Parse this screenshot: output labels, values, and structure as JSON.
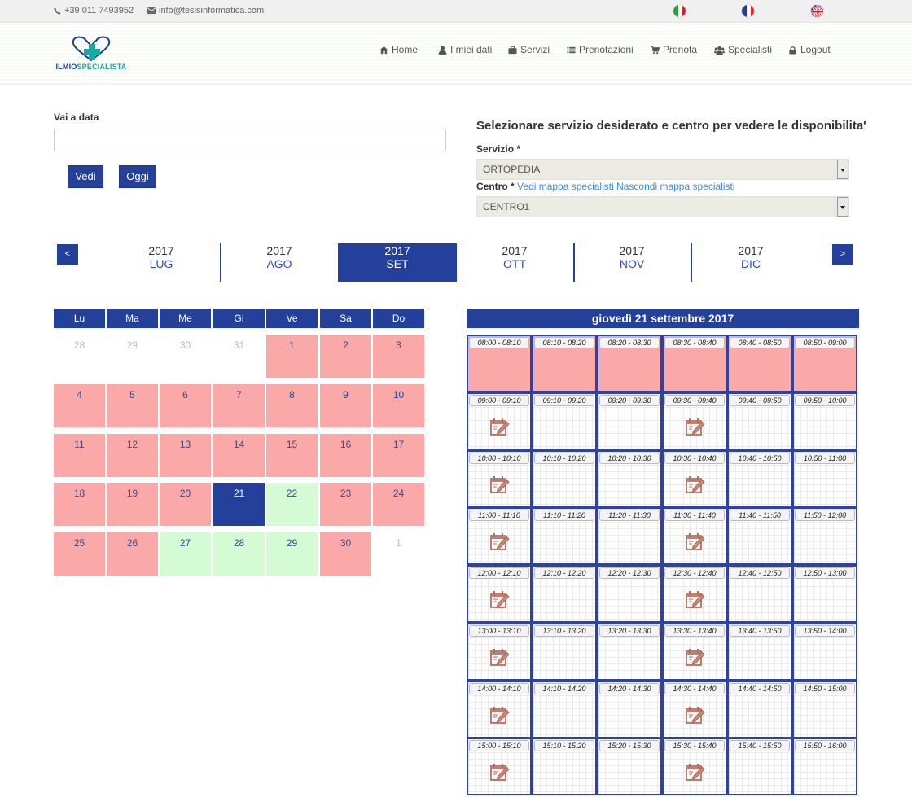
{
  "topbar": {
    "phone": "+39 011 7493952",
    "email": "info@tesisinformatica.com",
    "flags": [
      "italian-flag",
      "french-flag",
      "english-flag"
    ]
  },
  "logo": {
    "text_a": "ILMIO",
    "text_b": "SPECIALISTA"
  },
  "nav": [
    {
      "label": "Home",
      "icon": "home-icon"
    },
    {
      "label": "I miei dati",
      "icon": "user-icon"
    },
    {
      "label": "Servizi",
      "icon": "briefcase-icon"
    },
    {
      "label": "Prenotazioni",
      "icon": "list-icon"
    },
    {
      "label": "Prenota",
      "icon": "cart-icon"
    },
    {
      "label": "Specialisti",
      "icon": "users-icon"
    },
    {
      "label": "Logout",
      "icon": "lock-icon"
    }
  ],
  "goto": {
    "label": "Vai a data",
    "value": "",
    "vedi": "Vedi",
    "oggi": "Oggi"
  },
  "service_form": {
    "title": "Selezionare servizio desiderato e centro per vedere le disponibilita'",
    "servizio_label": "Servizio *",
    "servizio_value": "ORTOPEDIA",
    "centro_label": "Centro *",
    "link_show_map": "Vedi mappa specialisti",
    "link_hide_map": "Nascondi mappa specialisti",
    "centro_value": "CENTRO1"
  },
  "months": {
    "prev": "<",
    "next": ">",
    "items": [
      {
        "year": "2017",
        "month": "LUG"
      },
      {
        "year": "2017",
        "month": "AGO"
      },
      {
        "year": "2017",
        "month": "SET"
      },
      {
        "year": "2017",
        "month": "OTT"
      },
      {
        "year": "2017",
        "month": "NOV"
      },
      {
        "year": "2017",
        "month": "DIC"
      }
    ],
    "active": "SET"
  },
  "calendar": {
    "weekdays": [
      "Lu",
      "Ma",
      "Me",
      "Gi",
      "Ve",
      "Sa",
      "Do"
    ],
    "weeks": [
      [
        {
          "d": "28",
          "s": "other"
        },
        {
          "d": "29",
          "s": "other"
        },
        {
          "d": "30",
          "s": "other"
        },
        {
          "d": "31",
          "s": "other"
        },
        {
          "d": "1",
          "s": "busy"
        },
        {
          "d": "2",
          "s": "busy"
        },
        {
          "d": "3",
          "s": "busy"
        }
      ],
      [
        {
          "d": "4",
          "s": "busy"
        },
        {
          "d": "5",
          "s": "busy"
        },
        {
          "d": "6",
          "s": "busy"
        },
        {
          "d": "7",
          "s": "busy"
        },
        {
          "d": "8",
          "s": "busy"
        },
        {
          "d": "9",
          "s": "busy"
        },
        {
          "d": "10",
          "s": "busy"
        }
      ],
      [
        {
          "d": "11",
          "s": "busy"
        },
        {
          "d": "12",
          "s": "busy"
        },
        {
          "d": "13",
          "s": "busy"
        },
        {
          "d": "14",
          "s": "busy"
        },
        {
          "d": "15",
          "s": "busy"
        },
        {
          "d": "16",
          "s": "busy"
        },
        {
          "d": "17",
          "s": "busy"
        }
      ],
      [
        {
          "d": "18",
          "s": "busy"
        },
        {
          "d": "19",
          "s": "busy"
        },
        {
          "d": "20",
          "s": "busy"
        },
        {
          "d": "21",
          "s": "sel"
        },
        {
          "d": "22",
          "s": "free"
        },
        {
          "d": "23",
          "s": "busy"
        },
        {
          "d": "24",
          "s": "busy"
        }
      ],
      [
        {
          "d": "25",
          "s": "busy"
        },
        {
          "d": "26",
          "s": "busy"
        },
        {
          "d": "27",
          "s": "free"
        },
        {
          "d": "28",
          "s": "free"
        },
        {
          "d": "29",
          "s": "free"
        },
        {
          "d": "30",
          "s": "busy"
        },
        {
          "d": "1",
          "s": "other"
        }
      ]
    ]
  },
  "slots": {
    "title": "giovedì 21 settembre 2017",
    "rows": [
      [
        {
          "t": "08:00 - 08:10",
          "s": "busy"
        },
        {
          "t": "08:10 - 08:20",
          "s": "busy"
        },
        {
          "t": "08:20 - 08:30",
          "s": "busy"
        },
        {
          "t": "08:30 - 08:40",
          "s": "busy"
        },
        {
          "t": "08:40 - 08:50",
          "s": "busy"
        },
        {
          "t": "08:50 - 09:00",
          "s": "busy"
        }
      ],
      [
        {
          "t": "09:00 - 09:10",
          "s": "bookable"
        },
        {
          "t": "09:10 - 09:20",
          "s": "empty"
        },
        {
          "t": "09:20 - 09:30",
          "s": "empty"
        },
        {
          "t": "09:30 - 09:40",
          "s": "bookable"
        },
        {
          "t": "09:40 - 09:50",
          "s": "empty"
        },
        {
          "t": "09:50 - 10:00",
          "s": "empty"
        }
      ],
      [
        {
          "t": "10:00 - 10:10",
          "s": "bookable"
        },
        {
          "t": "10:10 - 10:20",
          "s": "empty"
        },
        {
          "t": "10:20 - 10:30",
          "s": "empty"
        },
        {
          "t": "10:30 - 10:40",
          "s": "bookable"
        },
        {
          "t": "10:40 - 10:50",
          "s": "empty"
        },
        {
          "t": "10:50 - 11:00",
          "s": "empty"
        }
      ],
      [
        {
          "t": "11:00 - 11:10",
          "s": "bookable"
        },
        {
          "t": "11:10 - 11:20",
          "s": "empty"
        },
        {
          "t": "11:20 - 11:30",
          "s": "empty"
        },
        {
          "t": "11:30 - 11:40",
          "s": "bookable"
        },
        {
          "t": "11:40 - 11:50",
          "s": "empty"
        },
        {
          "t": "11:50 - 12:00",
          "s": "empty"
        }
      ],
      [
        {
          "t": "12:00 - 12:10",
          "s": "bookable"
        },
        {
          "t": "12:10 - 12:20",
          "s": "empty"
        },
        {
          "t": "12:20 - 12:30",
          "s": "empty"
        },
        {
          "t": "12:30 - 12:40",
          "s": "bookable"
        },
        {
          "t": "12:40 - 12:50",
          "s": "empty"
        },
        {
          "t": "12:50 - 13:00",
          "s": "empty"
        }
      ],
      [
        {
          "t": "13:00 - 13:10",
          "s": "bookable"
        },
        {
          "t": "13:10 - 13:20",
          "s": "empty"
        },
        {
          "t": "13:20 - 13:30",
          "s": "empty"
        },
        {
          "t": "13:30 - 13:40",
          "s": "bookable"
        },
        {
          "t": "13:40 - 13:50",
          "s": "empty"
        },
        {
          "t": "13:50 - 14:00",
          "s": "empty"
        }
      ],
      [
        {
          "t": "14:00 - 14:10",
          "s": "bookable"
        },
        {
          "t": "14:10 - 14:20",
          "s": "empty"
        },
        {
          "t": "14:20 - 14:30",
          "s": "empty"
        },
        {
          "t": "14:30 - 14:40",
          "s": "bookable"
        },
        {
          "t": "14:40 - 14:50",
          "s": "empty"
        },
        {
          "t": "14:50 - 15:00",
          "s": "empty"
        }
      ],
      [
        {
          "t": "15:00 - 15:10",
          "s": "bookable"
        },
        {
          "t": "15:10 - 15:20",
          "s": "empty"
        },
        {
          "t": "15:20 - 15:30",
          "s": "empty"
        },
        {
          "t": "15:30 - 15:40",
          "s": "bookable"
        },
        {
          "t": "15:40 - 15:50",
          "s": "empty"
        },
        {
          "t": "15:50 - 16:00",
          "s": "empty"
        }
      ]
    ]
  },
  "colors": {
    "primary": "#24409b",
    "busy": "#fba8a8",
    "free": "#d4fbd4",
    "brand_teal": "#1aa8a0",
    "link": "#3a8dd8"
  }
}
